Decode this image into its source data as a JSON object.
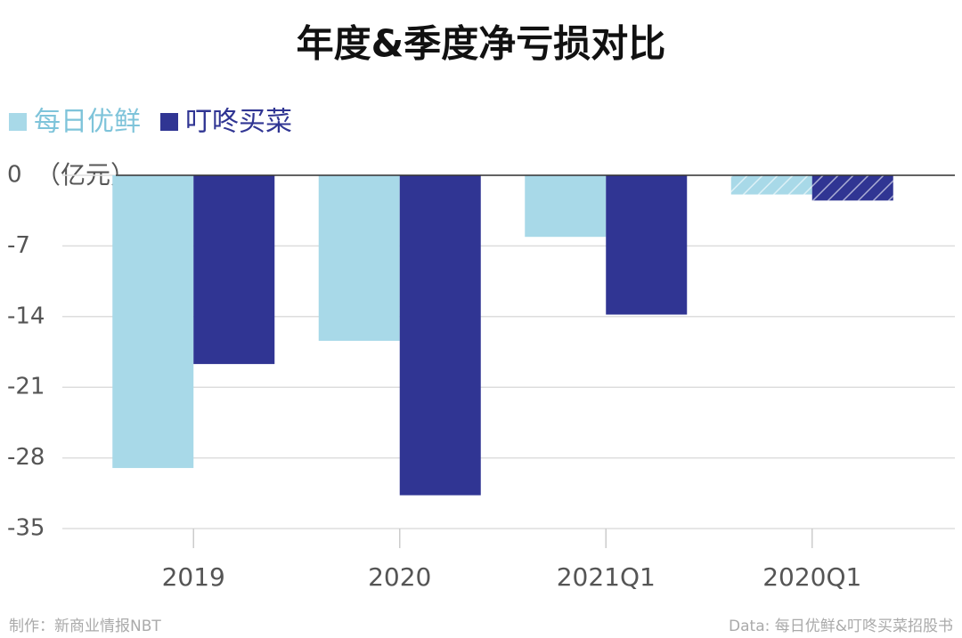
{
  "chart_data": {
    "type": "bar",
    "title": "年度&季度净亏损对比",
    "y_label": "（亿元）",
    "categories": [
      "2019",
      "2020",
      "2021Q1",
      "2020Q1"
    ],
    "series": [
      {
        "name": "每日优鲜",
        "color": "#a8d9e8",
        "values": [
          -29.0,
          -16.4,
          -6.1,
          -1.9
        ]
      },
      {
        "name": "叮咚买菜",
        "color": "#303593",
        "values": [
          -18.7,
          -31.7,
          -13.8,
          -2.5
        ]
      }
    ],
    "hatched": [
      false,
      false,
      false,
      true
    ],
    "ylim": [
      -35,
      0
    ],
    "yticks": [
      0,
      -7,
      -14,
      -21,
      -28,
      -35
    ],
    "grid": true,
    "legend": "top-left",
    "credit": "制作：新商业情报NBT",
    "source": "Data: 每日优鲜&叮咚买菜招股书"
  }
}
